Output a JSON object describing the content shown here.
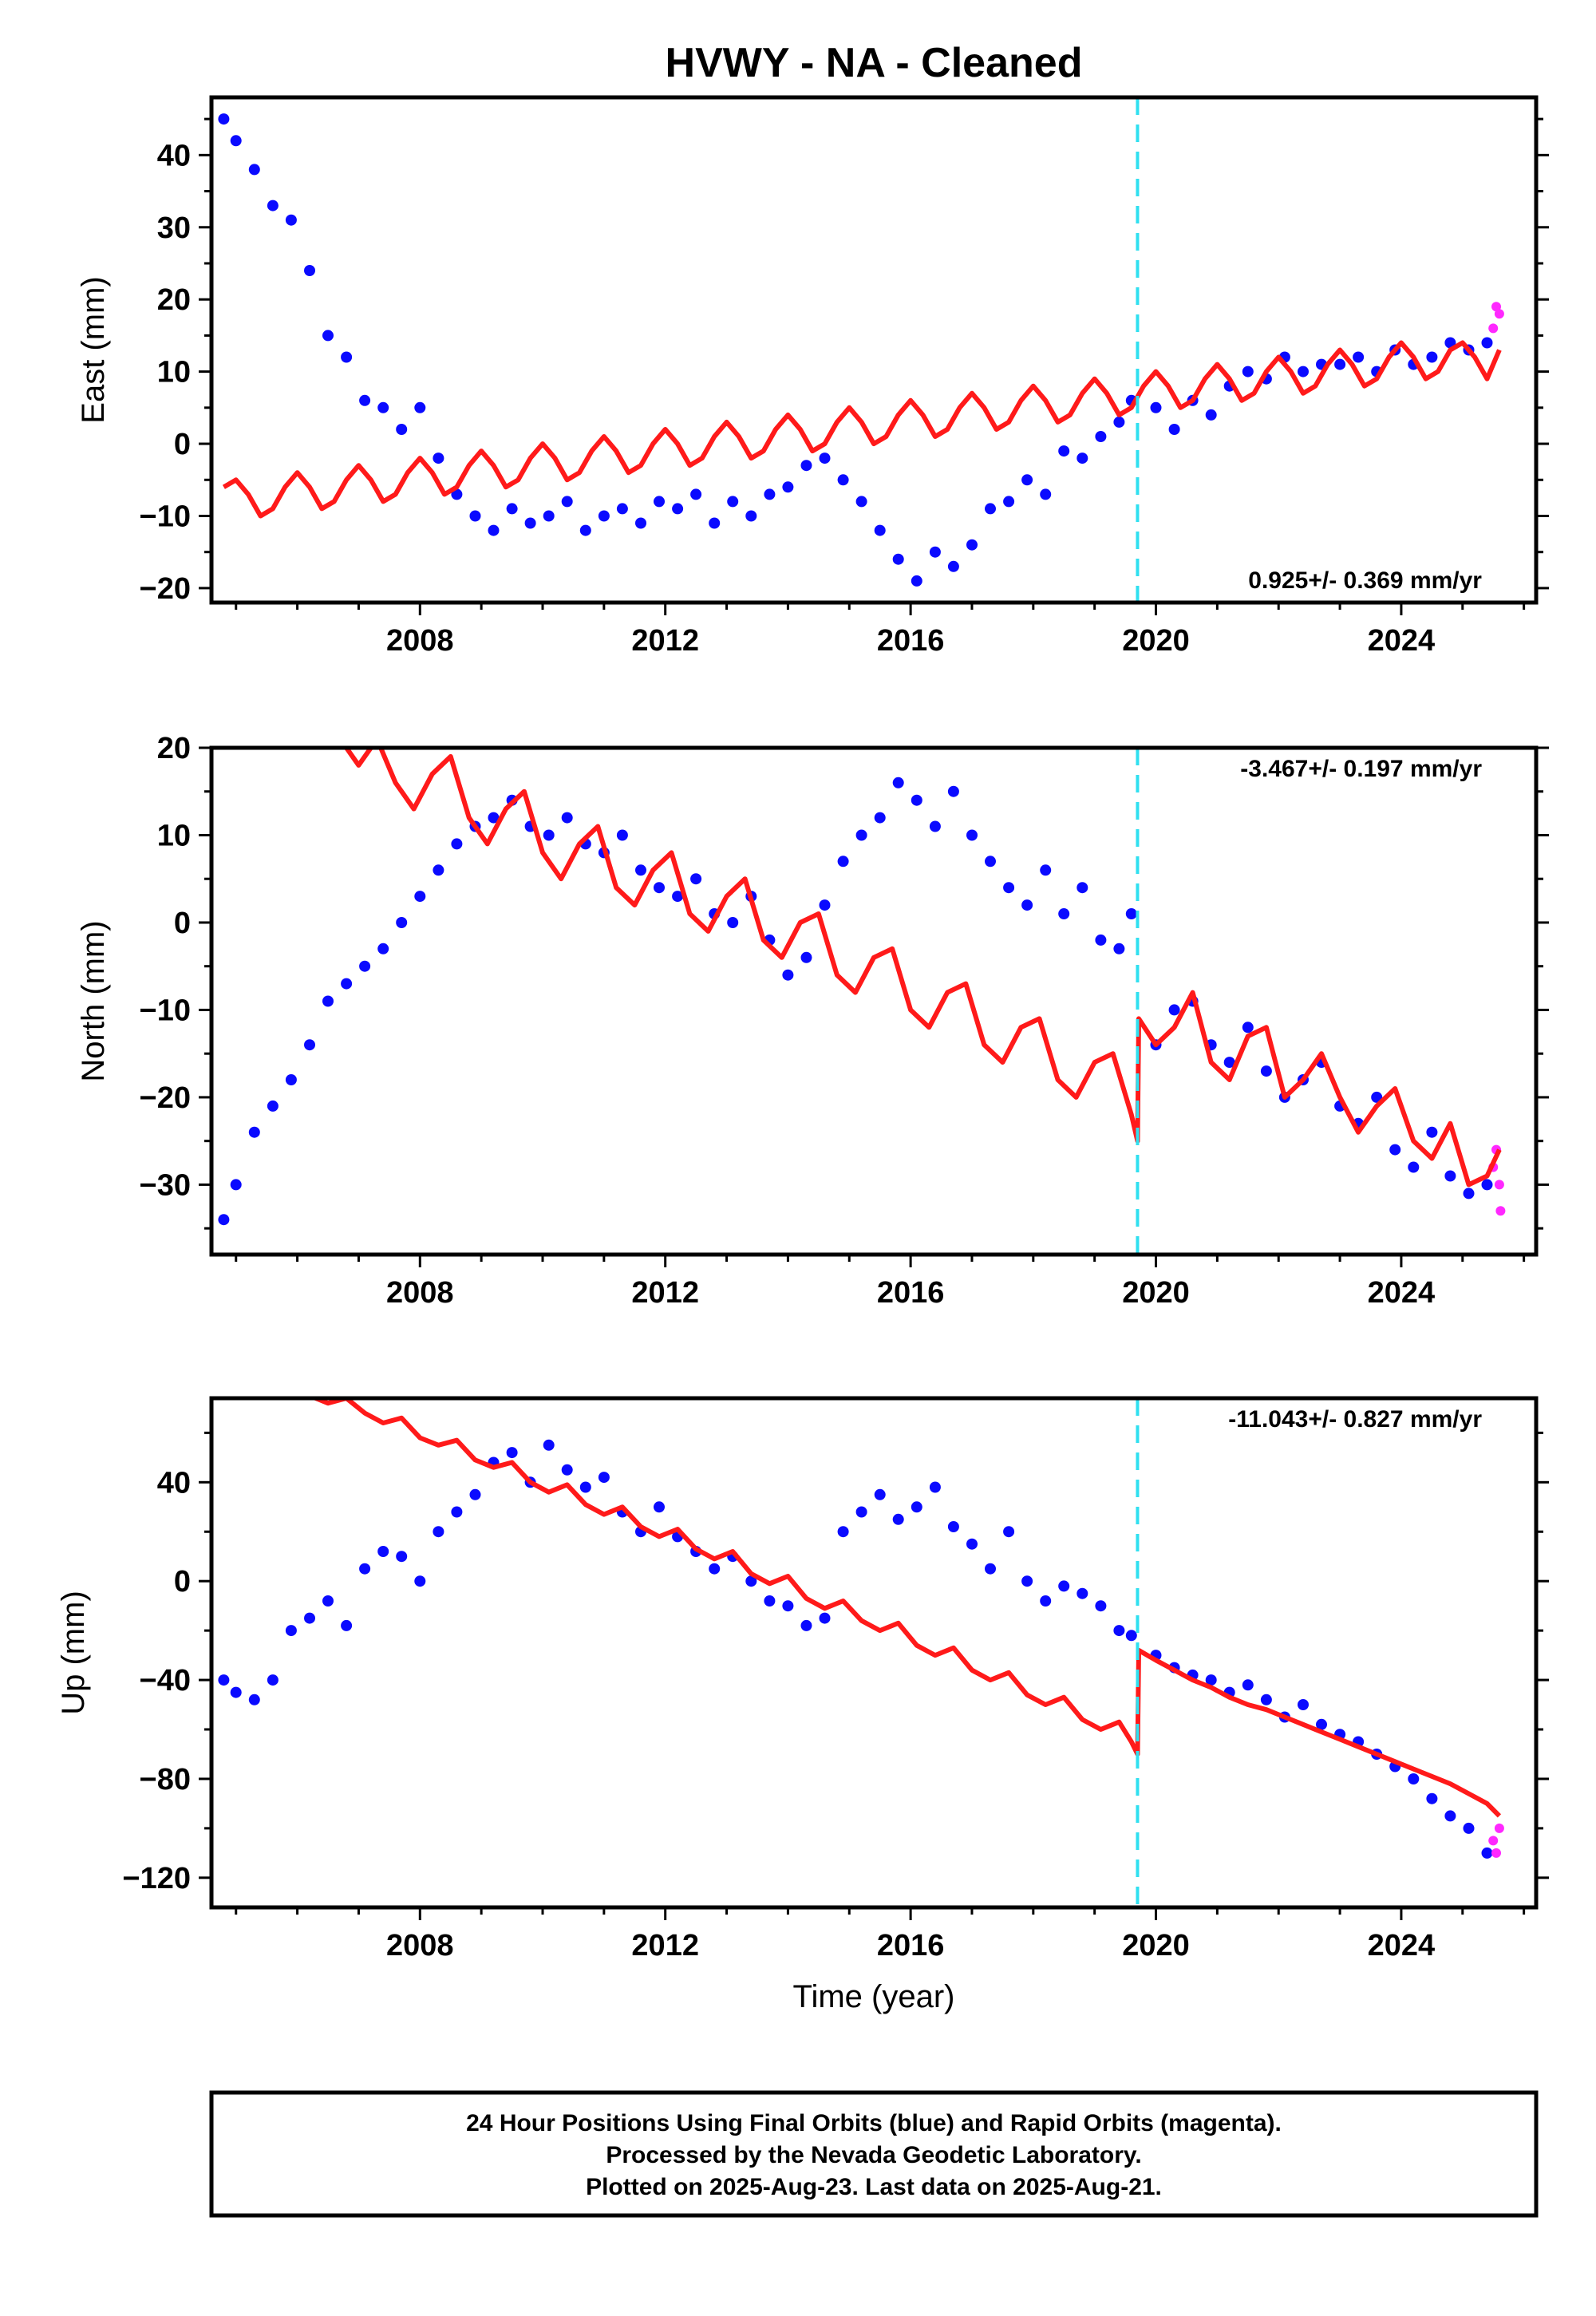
{
  "title": "HVWY  - NA - Cleaned",
  "xlabel": "Time (year)",
  "colors": {
    "final_orbits": "#0a0aff",
    "rapid_orbits": "#ff28ff",
    "model": "#ff1a1a",
    "event_line": "#2fe0f0"
  },
  "chart_data": [
    {
      "type": "scatter",
      "component": "east",
      "ylabel": "East (mm)",
      "ylim": [
        -22,
        48
      ],
      "yticks": [
        -20,
        -10,
        0,
        10,
        20,
        30,
        40
      ],
      "xlim": [
        2004.6,
        2026.2
      ],
      "xticks": [
        2008,
        2012,
        2016,
        2020,
        2024
      ],
      "rate": "0.925+/- 0.369 mm/yr",
      "event_x": 2019.7,
      "series": [
        {
          "kind": "final",
          "x": [
            2004.8,
            2005.0,
            2005.3,
            2005.6,
            2005.9,
            2006.2,
            2006.5,
            2006.8,
            2007.1,
            2007.4,
            2007.7,
            2008.0,
            2008.3,
            2008.6,
            2008.9,
            2009.2,
            2009.5,
            2009.8,
            2010.1,
            2010.4,
            2010.7,
            2011.0,
            2011.3,
            2011.6,
            2011.9,
            2012.2,
            2012.5,
            2012.8,
            2013.1,
            2013.4,
            2013.7,
            2014.0,
            2014.3,
            2014.6,
            2014.9,
            2015.2,
            2015.5,
            2015.8,
            2016.1,
            2016.4,
            2016.7,
            2017.0,
            2017.3,
            2017.6,
            2017.9,
            2018.2,
            2018.5,
            2018.8,
            2019.1,
            2019.4,
            2019.6,
            2020.0,
            2020.3,
            2020.6,
            2020.9,
            2021.2,
            2021.5,
            2021.8,
            2022.1,
            2022.4,
            2022.7,
            2023.0,
            2023.3,
            2023.6,
            2023.9,
            2024.2,
            2024.5,
            2024.8,
            2025.1,
            2025.4
          ],
          "y": [
            45,
            42,
            38,
            33,
            31,
            24,
            15,
            12,
            6,
            5,
            2,
            5,
            -2,
            -7,
            -10,
            -12,
            -9,
            -11,
            -10,
            -8,
            -12,
            -10,
            -9,
            -11,
            -8,
            -9,
            -7,
            -11,
            -8,
            -10,
            -7,
            -6,
            -3,
            -2,
            -5,
            -8,
            -12,
            -16,
            -19,
            -15,
            -17,
            -14,
            -9,
            -8,
            -5,
            -7,
            -1,
            -2,
            1,
            3,
            6,
            5,
            2,
            6,
            4,
            8,
            10,
            9,
            12,
            10,
            11,
            11,
            12,
            10,
            13,
            11,
            12,
            14,
            13,
            14
          ]
        },
        {
          "kind": "rapid",
          "x": [
            2025.5,
            2025.55,
            2025.6
          ],
          "y": [
            16,
            19,
            18
          ]
        },
        {
          "kind": "model",
          "x": [
            2004.8,
            2005.0,
            2005.2,
            2005.4,
            2005.6,
            2005.8,
            2006.0,
            2006.2,
            2006.4,
            2006.6,
            2006.8,
            2007.0,
            2007.2,
            2007.4,
            2007.6,
            2007.8,
            2008.0,
            2008.2,
            2008.4,
            2008.6,
            2008.8,
            2009.0,
            2009.2,
            2009.4,
            2009.6,
            2009.8,
            2010.0,
            2010.2,
            2010.4,
            2010.6,
            2010.8,
            2011.0,
            2011.2,
            2011.4,
            2011.6,
            2011.8,
            2012.0,
            2012.2,
            2012.4,
            2012.6,
            2012.8,
            2013.0,
            2013.2,
            2013.4,
            2013.6,
            2013.8,
            2014.0,
            2014.2,
            2014.4,
            2014.6,
            2014.8,
            2015.0,
            2015.2,
            2015.4,
            2015.6,
            2015.8,
            2016.0,
            2016.2,
            2016.4,
            2016.6,
            2016.8,
            2017.0,
            2017.2,
            2017.4,
            2017.6,
            2017.8,
            2018.0,
            2018.2,
            2018.4,
            2018.6,
            2018.8,
            2019.0,
            2019.2,
            2019.4,
            2019.6,
            2019.8,
            2020.0,
            2020.2,
            2020.4,
            2020.6,
            2020.8,
            2021.0,
            2021.2,
            2021.4,
            2021.6,
            2021.8,
            2022.0,
            2022.2,
            2022.4,
            2022.6,
            2022.8,
            2023.0,
            2023.2,
            2023.4,
            2023.6,
            2023.8,
            2024.0,
            2024.2,
            2024.4,
            2024.6,
            2024.8,
            2025.0,
            2025.2,
            2025.4,
            2025.6
          ],
          "y": [
            -6,
            -5,
            -7,
            -10,
            -9,
            -6,
            -4,
            -6,
            -9,
            -8,
            -5,
            -3,
            -5,
            -8,
            -7,
            -4,
            -2,
            -4,
            -7,
            -6,
            -3,
            -1,
            -3,
            -6,
            -5,
            -2,
            0,
            -2,
            -5,
            -4,
            -1,
            1,
            -1,
            -4,
            -3,
            0,
            2,
            0,
            -3,
            -2,
            1,
            3,
            1,
            -2,
            -1,
            2,
            4,
            2,
            -1,
            0,
            3,
            5,
            3,
            0,
            1,
            4,
            6,
            4,
            1,
            2,
            5,
            7,
            5,
            2,
            3,
            6,
            8,
            6,
            3,
            4,
            7,
            9,
            7,
            4,
            5,
            8,
            10,
            8,
            5,
            6,
            9,
            11,
            9,
            6,
            7,
            10,
            12,
            10,
            7,
            8,
            11,
            13,
            11,
            8,
            9,
            12,
            14,
            12,
            9,
            10,
            13,
            14,
            12,
            9,
            13
          ]
        }
      ]
    },
    {
      "type": "scatter",
      "component": "north",
      "ylabel": "North (mm)",
      "ylim": [
        -38,
        20
      ],
      "yticks": [
        -30,
        -20,
        -10,
        0,
        10,
        20
      ],
      "xlim": [
        2004.6,
        2026.2
      ],
      "xticks": [
        2008,
        2012,
        2016,
        2020,
        2024
      ],
      "rate": "-3.467+/- 0.197 mm/yr",
      "event_x": 2019.7,
      "series": [
        {
          "kind": "final",
          "x": [
            2004.8,
            2005.0,
            2005.3,
            2005.6,
            2005.9,
            2006.2,
            2006.5,
            2006.8,
            2007.1,
            2007.4,
            2007.7,
            2008.0,
            2008.3,
            2008.6,
            2008.9,
            2009.2,
            2009.5,
            2009.8,
            2010.1,
            2010.4,
            2010.7,
            2011.0,
            2011.3,
            2011.6,
            2011.9,
            2012.2,
            2012.5,
            2012.8,
            2013.1,
            2013.4,
            2013.7,
            2014.0,
            2014.3,
            2014.6,
            2014.9,
            2015.2,
            2015.5,
            2015.8,
            2016.1,
            2016.4,
            2016.7,
            2017.0,
            2017.3,
            2017.6,
            2017.9,
            2018.2,
            2018.5,
            2018.8,
            2019.1,
            2019.4,
            2019.6,
            2020.0,
            2020.3,
            2020.6,
            2020.9,
            2021.2,
            2021.5,
            2021.8,
            2022.1,
            2022.4,
            2022.7,
            2023.0,
            2023.3,
            2023.6,
            2023.9,
            2024.2,
            2024.5,
            2024.8,
            2025.1,
            2025.4
          ],
          "y": [
            -34,
            -30,
            -24,
            -21,
            -18,
            -14,
            -9,
            -7,
            -5,
            -3,
            0,
            3,
            6,
            9,
            11,
            12,
            14,
            11,
            10,
            12,
            9,
            8,
            10,
            6,
            4,
            3,
            5,
            1,
            0,
            3,
            -2,
            -6,
            -4,
            2,
            7,
            10,
            12,
            16,
            14,
            11,
            15,
            10,
            7,
            4,
            2,
            6,
            1,
            4,
            -2,
            -3,
            1,
            -14,
            -10,
            -9,
            -14,
            -16,
            -12,
            -17,
            -20,
            -18,
            -16,
            -21,
            -23,
            -20,
            -26,
            -28,
            -24,
            -29,
            -31,
            -30
          ]
        },
        {
          "kind": "rapid",
          "x": [
            2025.5,
            2025.55,
            2025.6,
            2025.62
          ],
          "y": [
            -28,
            -26,
            -30,
            -33
          ]
        },
        {
          "kind": "model",
          "x": [
            2006.8,
            2007.0,
            2007.3,
            2007.6,
            2007.9,
            2008.2,
            2008.5,
            2008.8,
            2009.1,
            2009.4,
            2009.7,
            2010.0,
            2010.3,
            2010.6,
            2010.9,
            2011.2,
            2011.5,
            2011.8,
            2012.1,
            2012.4,
            2012.7,
            2013.0,
            2013.3,
            2013.6,
            2013.9,
            2014.2,
            2014.5,
            2014.8,
            2015.1,
            2015.4,
            2015.7,
            2016.0,
            2016.3,
            2016.6,
            2016.9,
            2017.2,
            2017.5,
            2017.8,
            2018.1,
            2018.4,
            2018.7,
            2019.0,
            2019.3,
            2019.6,
            2019.7,
            2019.72,
            2020.0,
            2020.3,
            2020.6,
            2020.9,
            2021.2,
            2021.5,
            2021.8,
            2022.1,
            2022.4,
            2022.7,
            2023.0,
            2023.3,
            2023.6,
            2023.9,
            2024.2,
            2024.5,
            2024.8,
            2025.1,
            2025.4,
            2025.6
          ],
          "y": [
            20,
            18,
            21,
            16,
            13,
            17,
            19,
            12,
            9,
            13,
            15,
            8,
            5,
            9,
            11,
            4,
            2,
            6,
            8,
            1,
            -1,
            3,
            5,
            -2,
            -4,
            0,
            1,
            -6,
            -8,
            -4,
            -3,
            -10,
            -12,
            -8,
            -7,
            -14,
            -16,
            -12,
            -11,
            -18,
            -20,
            -16,
            -15,
            -22,
            -25,
            -11,
            -14,
            -12,
            -8,
            -16,
            -18,
            -13,
            -12,
            -20,
            -18,
            -15,
            -20,
            -24,
            -21,
            -19,
            -25,
            -27,
            -23,
            -30,
            -29,
            -26
          ]
        }
      ]
    },
    {
      "type": "scatter",
      "component": "up",
      "ylabel": "Up (mm)",
      "ylim": [
        -132,
        74
      ],
      "yticks": [
        -120,
        -80,
        -40,
        0,
        40
      ],
      "xlim": [
        2004.6,
        2026.2
      ],
      "xticks": [
        2008,
        2012,
        2016,
        2020,
        2024
      ],
      "rate": "-11.043+/- 0.827 mm/yr",
      "event_x": 2019.7,
      "series": [
        {
          "kind": "final",
          "x": [
            2004.8,
            2005.0,
            2005.3,
            2005.6,
            2005.9,
            2006.2,
            2006.5,
            2006.8,
            2007.1,
            2007.4,
            2007.7,
            2008.0,
            2008.3,
            2008.6,
            2008.9,
            2009.2,
            2009.5,
            2009.8,
            2010.1,
            2010.4,
            2010.7,
            2011.0,
            2011.3,
            2011.6,
            2011.9,
            2012.2,
            2012.5,
            2012.8,
            2013.1,
            2013.4,
            2013.7,
            2014.0,
            2014.3,
            2014.6,
            2014.9,
            2015.2,
            2015.5,
            2015.8,
            2016.1,
            2016.4,
            2016.7,
            2017.0,
            2017.3,
            2017.6,
            2017.9,
            2018.2,
            2018.5,
            2018.8,
            2019.1,
            2019.4,
            2019.6,
            2020.0,
            2020.3,
            2020.6,
            2020.9,
            2021.2,
            2021.5,
            2021.8,
            2022.1,
            2022.4,
            2022.7,
            2023.0,
            2023.3,
            2023.6,
            2023.9,
            2024.2,
            2024.5,
            2024.8,
            2025.1,
            2025.4
          ],
          "y": [
            -40,
            -45,
            -48,
            -40,
            -20,
            -15,
            -8,
            -18,
            5,
            12,
            10,
            0,
            20,
            28,
            35,
            48,
            52,
            40,
            55,
            45,
            38,
            42,
            28,
            20,
            30,
            18,
            12,
            5,
            10,
            0,
            -8,
            -10,
            -18,
            -15,
            20,
            28,
            35,
            25,
            30,
            38,
            22,
            15,
            5,
            20,
            0,
            -8,
            -2,
            -5,
            -10,
            -20,
            -22,
            -30,
            -35,
            -38,
            -40,
            -45,
            -42,
            -48,
            -55,
            -50,
            -58,
            -62,
            -65,
            -70,
            -75,
            -80,
            -88,
            -95,
            -100,
            -110
          ]
        },
        {
          "kind": "rapid",
          "x": [
            2025.5,
            2025.55,
            2025.6
          ],
          "y": [
            -105,
            -110,
            -100
          ]
        },
        {
          "kind": "model",
          "x": [
            2006.2,
            2006.5,
            2006.8,
            2007.1,
            2007.4,
            2007.7,
            2008.0,
            2008.3,
            2008.6,
            2008.9,
            2009.2,
            2009.5,
            2009.8,
            2010.1,
            2010.4,
            2010.7,
            2011.0,
            2011.3,
            2011.6,
            2011.9,
            2012.2,
            2012.5,
            2012.8,
            2013.1,
            2013.4,
            2013.7,
            2014.0,
            2014.3,
            2014.6,
            2014.9,
            2015.2,
            2015.5,
            2015.8,
            2016.1,
            2016.4,
            2016.7,
            2017.0,
            2017.3,
            2017.6,
            2017.9,
            2018.2,
            2018.5,
            2018.8,
            2019.1,
            2019.4,
            2019.6,
            2019.7,
            2019.72,
            2020.0,
            2020.3,
            2020.6,
            2020.9,
            2021.2,
            2021.5,
            2021.8,
            2022.1,
            2022.4,
            2022.7,
            2023.0,
            2023.3,
            2023.6,
            2023.9,
            2024.2,
            2024.5,
            2024.8,
            2025.1,
            2025.4,
            2025.6
          ],
          "y": [
            75,
            72,
            74,
            68,
            64,
            66,
            58,
            55,
            57,
            49,
            46,
            48,
            40,
            36,
            39,
            31,
            27,
            30,
            22,
            18,
            21,
            13,
            9,
            12,
            3,
            -1,
            2,
            -7,
            -11,
            -8,
            -16,
            -20,
            -17,
            -26,
            -30,
            -27,
            -36,
            -40,
            -37,
            -46,
            -50,
            -47,
            -56,
            -60,
            -57,
            -65,
            -70,
            -28,
            -32,
            -36,
            -40,
            -43,
            -47,
            -50,
            -52,
            -55,
            -58,
            -61,
            -64,
            -67,
            -70,
            -73,
            -76,
            -79,
            -82,
            -86,
            -90,
            -95
          ]
        }
      ]
    }
  ],
  "footer": {
    "line1": "24 Hour Positions Using Final Orbits (blue) and Rapid Orbits (magenta).",
    "line2": "Processed by the Nevada Geodetic Laboratory.",
    "line3": "Plotted on 2025-Aug-23. Last data on 2025-Aug-21."
  }
}
